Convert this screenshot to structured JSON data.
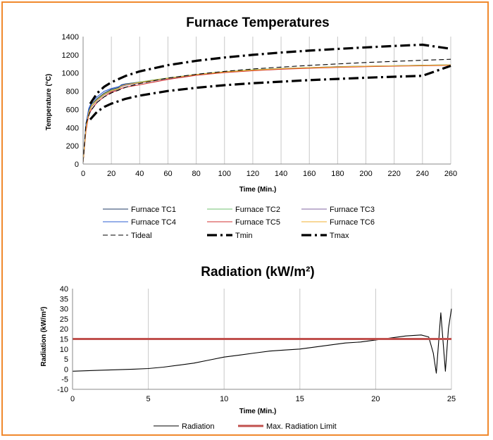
{
  "chart_data": [
    {
      "type": "line",
      "title": "Furnace Temperatures",
      "xlabel": "Time (Min.)",
      "ylabel": "Temperature (°C)",
      "xlim": [
        0,
        260
      ],
      "ylim": [
        0,
        1400
      ],
      "xticks": [
        0,
        20,
        40,
        60,
        80,
        100,
        120,
        140,
        160,
        180,
        200,
        220,
        240,
        260
      ],
      "yticks": [
        0,
        200,
        400,
        600,
        800,
        1000,
        1200,
        1400
      ],
      "grid": "vertical",
      "legend": "bottom",
      "series": [
        {
          "name": "Furnace TC1",
          "color": "#1f3864",
          "style": "solid",
          "x": [
            0,
            2,
            4,
            6,
            10,
            15,
            20,
            25,
            27,
            30,
            40,
            50,
            60,
            80,
            100,
            120,
            140,
            160,
            180,
            200,
            220,
            240,
            260
          ],
          "y": [
            20,
            420,
            590,
            660,
            720,
            780,
            820,
            840,
            870,
            880,
            900,
            920,
            940,
            980,
            1010,
            1030,
            1050,
            1060,
            1070,
            1075,
            1080,
            1085,
            1090
          ]
        },
        {
          "name": "Furnace TC2",
          "color": "#70c070",
          "style": "solid",
          "x": [
            0,
            2,
            4,
            6,
            10,
            15,
            20,
            25,
            27,
            30,
            40,
            50,
            60,
            80,
            100,
            120,
            140,
            160,
            180,
            200,
            220,
            240,
            260
          ],
          "y": [
            20,
            400,
            570,
            640,
            710,
            770,
            810,
            830,
            860,
            875,
            900,
            925,
            945,
            985,
            1015,
            1035,
            1050,
            1060,
            1068,
            1075,
            1080,
            1085,
            1090
          ]
        },
        {
          "name": "Furnace TC3",
          "color": "#8064a2",
          "style": "solid",
          "x": [
            0,
            2,
            4,
            6,
            10,
            15,
            20,
            25,
            27,
            30,
            40,
            50,
            60,
            80,
            100,
            120,
            140,
            160,
            180,
            200,
            220,
            240,
            260
          ],
          "y": [
            20,
            380,
            560,
            630,
            700,
            760,
            800,
            820,
            850,
            865,
            890,
            915,
            940,
            980,
            1010,
            1030,
            1048,
            1058,
            1066,
            1073,
            1078,
            1083,
            1088
          ]
        },
        {
          "name": "Furnace TC4",
          "color": "#2e5fd0",
          "style": "solid",
          "x": [
            0,
            2,
            4,
            6,
            10,
            15,
            20,
            25,
            27,
            30,
            40,
            50,
            60,
            80,
            100,
            120,
            140,
            160,
            180,
            200,
            220,
            240,
            260
          ],
          "y": [
            20,
            440,
            610,
            680,
            740,
            800,
            830,
            850,
            865,
            875,
            895,
            920,
            940,
            978,
            1008,
            1028,
            1045,
            1055,
            1065,
            1072,
            1078,
            1082,
            1088
          ]
        },
        {
          "name": "Furnace TC5",
          "color": "#d03030",
          "style": "solid",
          "x": [
            0,
            2,
            4,
            6,
            10,
            15,
            20,
            25,
            27,
            30,
            40,
            50,
            60,
            80,
            100,
            120,
            140,
            160,
            180,
            200,
            220,
            240,
            260
          ],
          "y": [
            20,
            360,
            540,
            600,
            680,
            740,
            790,
            810,
            830,
            845,
            870,
            900,
            930,
            975,
            1005,
            1025,
            1042,
            1052,
            1062,
            1070,
            1075,
            1080,
            1085
          ]
        },
        {
          "name": "Furnace TC6",
          "color": "#f0b030",
          "style": "solid",
          "x": [
            0,
            2,
            4,
            6,
            10,
            15,
            20,
            25,
            27,
            30,
            40,
            50,
            60,
            80,
            100,
            120,
            140,
            160,
            180,
            200,
            220,
            240,
            260
          ],
          "y": [
            20,
            390,
            565,
            635,
            705,
            765,
            805,
            825,
            855,
            870,
            895,
            920,
            942,
            982,
            1012,
            1032,
            1048,
            1058,
            1067,
            1074,
            1079,
            1084,
            1089
          ]
        },
        {
          "name": "Tideal",
          "color": "#000000",
          "style": "dash",
          "x": [
            0,
            2,
            5,
            10,
            15,
            20,
            30,
            40,
            60,
            80,
            100,
            120,
            140,
            160,
            180,
            200,
            220,
            240,
            260
          ],
          "y": [
            20,
            445,
            576,
            678,
            739,
            781,
            842,
            885,
            945,
            986,
            1018,
            1044,
            1065,
            1084,
            1100,
            1115,
            1128,
            1140,
            1151
          ]
        },
        {
          "name": "Tmin",
          "color": "#000000",
          "style": "dashdot",
          "x": [
            5,
            10,
            15,
            20,
            30,
            40,
            60,
            80,
            100,
            120,
            140,
            160,
            180,
            200,
            220,
            240,
            260
          ],
          "y": [
            489,
            576,
            628,
            664,
            716,
            752,
            803,
            838,
            866,
            888,
            905,
            922,
            935,
            948,
            959,
            969,
            1079
          ]
        },
        {
          "name": "Tmax",
          "color": "#000000",
          "style": "dashdot",
          "x": [
            5,
            10,
            15,
            20,
            30,
            40,
            60,
            80,
            100,
            120,
            140,
            160,
            180,
            200,
            220,
            240,
            260
          ],
          "y": [
            662,
            780,
            850,
            898,
            968,
            1018,
            1087,
            1134,
            1170,
            1200,
            1225,
            1246,
            1265,
            1282,
            1297,
            1311,
            1266
          ]
        }
      ]
    },
    {
      "type": "line",
      "title": "Radiation (kW/m²)",
      "xlabel": "Time (Min.)",
      "ylabel": "Radiation (kW/m²)",
      "xlim": [
        0,
        25
      ],
      "ylim": [
        -10,
        40
      ],
      "xticks": [
        0,
        5,
        10,
        15,
        20,
        25
      ],
      "yticks": [
        -10,
        -5,
        0,
        5,
        10,
        15,
        20,
        25,
        30,
        35,
        40
      ],
      "grid": "vertical",
      "legend": "bottom",
      "series": [
        {
          "name": "Radiation",
          "color": "#000000",
          "style": "solid",
          "x": [
            0,
            2,
            4,
            5,
            6,
            7,
            8,
            9,
            10,
            11,
            12,
            13,
            14,
            15,
            16,
            17,
            18,
            19,
            20,
            21,
            22,
            23,
            23.5,
            23.8,
            24.0,
            24.3,
            24.6,
            24.8,
            25.0
          ],
          "y": [
            -1,
            -0.5,
            0,
            0.3,
            1,
            2,
            3,
            4.5,
            6,
            7,
            8,
            9,
            9.5,
            10,
            11,
            12,
            13,
            13.5,
            14.5,
            15.5,
            16.5,
            17,
            16,
            8,
            -2,
            28,
            -1,
            20,
            30
          ]
        },
        {
          "name": "Max. Radiation Limit",
          "color": "#c0504d",
          "style": "thick",
          "x": [
            0,
            25
          ],
          "y": [
            15,
            15
          ]
        }
      ]
    }
  ]
}
